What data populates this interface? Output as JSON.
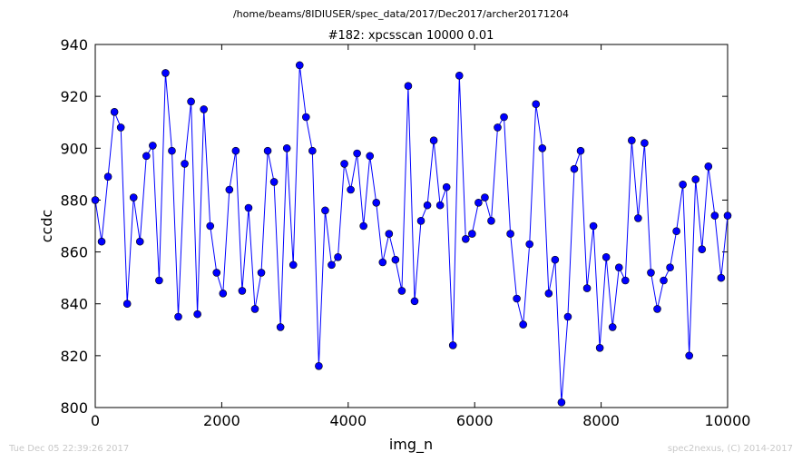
{
  "page": {
    "path_title": "/home/beams/8IDIUSER/spec_data/2017/Dec2017/archer20171204",
    "footer_left": "Tue Dec 05 22:39:26 2017",
    "footer_right": "spec2nexus, (C) 2014-2017"
  },
  "chart_data": {
    "type": "line",
    "title": "#182: xpcsscan 10000 0.01",
    "xlabel": "img_n",
    "ylabel": "ccdc",
    "xlim": [
      0,
      10000
    ],
    "ylim": [
      800,
      940
    ],
    "xticks": [
      0,
      2000,
      4000,
      6000,
      8000,
      10000
    ],
    "yticks": [
      800,
      820,
      840,
      860,
      880,
      900,
      920,
      940
    ],
    "xtick_labels": [
      "0",
      "2000",
      "4000",
      "6000",
      "8000",
      "10000"
    ],
    "ytick_labels": [
      "800",
      "820",
      "840",
      "860",
      "880",
      "900",
      "920",
      "940"
    ],
    "grid": false,
    "marker": "circle",
    "line_color": "#0000ff",
    "marker_color": "#0000ff",
    "series": [
      {
        "x": [
          0,
          101,
          202,
          303,
          404,
          505,
          606,
          707,
          808,
          909,
          1010,
          1111,
          1212,
          1313,
          1414,
          1515,
          1616,
          1717,
          1818,
          1919,
          2020,
          2121,
          2222,
          2323,
          2424,
          2525,
          2626,
          2727,
          2828,
          2929,
          3030,
          3131,
          3232,
          3333,
          3434,
          3535,
          3636,
          3737,
          3838,
          3939,
          4040,
          4141,
          4242,
          4343,
          4444,
          4545,
          4646,
          4747,
          4848,
          4949,
          5050,
          5151,
          5252,
          5353,
          5454,
          5555,
          5656,
          5757,
          5858,
          5959,
          6060,
          6161,
          6262,
          6363,
          6464,
          6565,
          6666,
          6767,
          6868,
          6969,
          7070,
          7171,
          7272,
          7373,
          7474,
          7575,
          7676,
          7777,
          7878,
          7979,
          8080,
          8181,
          8282,
          8383,
          8484,
          8585,
          8686,
          8787,
          8888,
          8989,
          9090,
          9191,
          9292,
          9393,
          9494,
          9595,
          9696,
          9797,
          9898,
          10000
        ],
        "y": [
          880,
          864,
          889,
          914,
          908,
          840,
          881,
          864,
          897,
          901,
          849,
          929,
          899,
          835,
          894,
          918,
          836,
          915,
          870,
          852,
          844,
          884,
          899,
          845,
          877,
          838,
          852,
          899,
          887,
          831,
          900,
          855,
          932,
          912,
          899,
          816,
          876,
          855,
          858,
          894,
          884,
          898,
          870,
          897,
          879,
          856,
          867,
          857,
          845,
          924,
          841,
          872,
          878,
          903,
          878,
          885,
          824,
          928,
          865,
          867,
          879,
          881,
          872,
          908,
          912,
          867,
          842,
          832,
          863,
          917,
          900,
          844,
          857,
          802,
          835,
          892,
          899,
          846,
          870,
          823,
          858,
          831,
          854,
          849,
          903,
          873,
          902,
          852,
          838,
          849,
          854,
          868,
          886,
          820,
          888,
          861,
          893,
          874,
          850,
          874
        ]
      }
    ]
  }
}
